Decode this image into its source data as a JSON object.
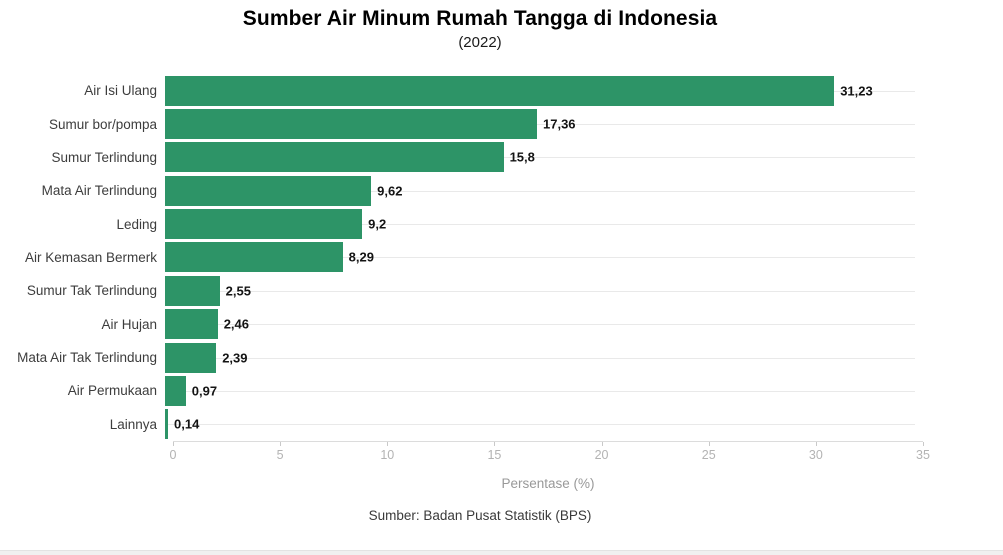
{
  "header": {
    "title": "Sumber Air Minum Rumah Tangga di Indonesia",
    "subtitle": "(2022)"
  },
  "chart_data": {
    "type": "bar",
    "orientation": "horizontal",
    "title": "Sumber Air Minum Rumah Tangga di Indonesia",
    "subtitle": "(2022)",
    "categories": [
      "Air Isi Ulang",
      "Sumur bor/pompa",
      "Sumur Terlindung",
      "Mata Air Terlindung",
      "Leding",
      "Air Kemasan Bermerk",
      "Sumur Tak Terlindung",
      "Air Hujan",
      "Mata Air Tak Terlindung",
      "Air Permukaan",
      "Lainnya"
    ],
    "values": [
      31.23,
      17.36,
      15.8,
      9.62,
      9.2,
      8.29,
      2.55,
      2.46,
      2.39,
      0.97,
      0.14
    ],
    "value_labels": [
      "31,23",
      "17,36",
      "15,8",
      "9,62",
      "9,2",
      "8,29",
      "2,55",
      "2,46",
      "2,39",
      "0,97",
      "0,14"
    ],
    "xlabel": "Persentase (%)",
    "ylabel": "",
    "xlim": [
      0,
      35
    ],
    "xticks": [
      0,
      5,
      10,
      15,
      20,
      25,
      30,
      35
    ],
    "grid": "horizontal category gridlines only",
    "legend": "none",
    "bar_color": "#2d9467",
    "gridline_color": "#e9e9e9"
  },
  "footer": {
    "source": "Sumber: Badan Pusat Statistik (BPS)"
  }
}
